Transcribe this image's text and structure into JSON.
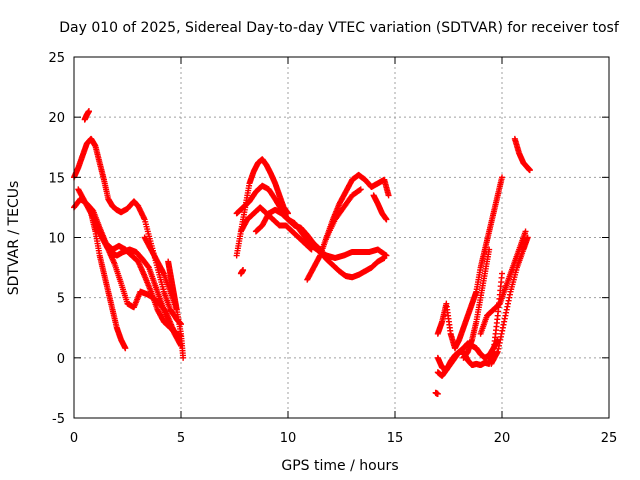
{
  "chart_data": {
    "type": "scatter",
    "title": "Day 010 of 2025, Sidereal Day-to-day VTEC variation (SDTVAR) for receiver tosf",
    "xlabel": "GPS time / hours",
    "ylabel": "SDTVAR / TECUs",
    "xlim": [
      0,
      25
    ],
    "ylim": [
      -5,
      25
    ],
    "xticks": [
      0,
      5,
      10,
      15,
      20,
      25
    ],
    "yticks": [
      -5,
      0,
      5,
      10,
      15,
      20,
      25
    ],
    "grid": true,
    "marker": "+",
    "color": "#ff0000",
    "series": [
      {
        "x": [
          0.0,
          0.2,
          0.4,
          0.6,
          0.8,
          1.0,
          1.2,
          1.4,
          1.6,
          1.8,
          2.0,
          2.2,
          2.5,
          2.8,
          3.0,
          3.3,
          3.6,
          3.9,
          4.2,
          4.5,
          4.8,
          5.0
        ],
        "y": [
          15.0,
          15.8,
          16.8,
          17.8,
          18.2,
          17.6,
          16.2,
          14.8,
          13.2,
          12.6,
          12.3,
          12.1,
          12.4,
          13.0,
          12.6,
          11.5,
          9.5,
          7.5,
          5.5,
          4.0,
          3.2,
          2.8
        ]
      },
      {
        "x": [
          0.0,
          0.3,
          0.6,
          0.9,
          1.2,
          1.5,
          1.8,
          2.1,
          2.4,
          2.7,
          3.0,
          3.3,
          3.6,
          3.9,
          4.2,
          4.5,
          4.8,
          5.0
        ],
        "y": [
          12.5,
          13.2,
          12.8,
          12.2,
          10.8,
          9.5,
          9.0,
          9.3,
          9.0,
          8.5,
          8.0,
          6.8,
          5.5,
          4.0,
          3.0,
          2.5,
          2.0,
          1.8
        ]
      },
      {
        "x": [
          0.8,
          1.0,
          1.2,
          1.4,
          1.6,
          1.8,
          2.0,
          2.2,
          2.4
        ],
        "y": [
          12.0,
          10.5,
          8.5,
          7.0,
          5.5,
          4.0,
          2.5,
          1.5,
          0.8
        ]
      },
      {
        "x": [
          1.0,
          1.3,
          1.6,
          1.9,
          2.2,
          2.5,
          2.8,
          3.1,
          3.4,
          3.7,
          4.0,
          4.3,
          4.6,
          4.9
        ],
        "y": [
          11.0,
          10.0,
          9.0,
          7.8,
          6.2,
          4.5,
          4.2,
          5.5,
          5.3,
          5.0,
          4.5,
          3.8,
          2.5,
          1.5
        ]
      },
      {
        "x": [
          0.2,
          0.5,
          0.8,
          1.1,
          1.4,
          1.7,
          2.0,
          2.3,
          2.6,
          2.9,
          3.2,
          3.5,
          3.8,
          4.1,
          4.4,
          4.7,
          5.0
        ],
        "y": [
          14.0,
          13.0,
          12.0,
          11.0,
          9.8,
          8.8,
          8.5,
          8.8,
          9.0,
          8.8,
          8.2,
          7.5,
          6.0,
          4.5,
          3.0,
          2.0,
          1.0
        ]
      },
      {
        "x": [
          3.3,
          3.6,
          3.9,
          4.2,
          4.5,
          4.8,
          5.0,
          5.1
        ],
        "y": [
          10.0,
          9.0,
          8.0,
          7.0,
          5.5,
          4.0,
          2.0,
          0.0
        ]
      },
      {
        "x": [
          4.4,
          4.5,
          4.6,
          4.7,
          4.8
        ],
        "y": [
          8.0,
          7.0,
          6.0,
          5.0,
          4.0
        ]
      },
      {
        "x": [
          0.5,
          0.6,
          0.7
        ],
        "y": [
          19.8,
          20.2,
          20.5
        ]
      },
      {
        "x": [
          7.6,
          7.8,
          8.0,
          8.2,
          8.4,
          8.6,
          8.8,
          9.0,
          9.2,
          9.4,
          9.6,
          9.8,
          10.0
        ],
        "y": [
          8.5,
          10.5,
          12.5,
          14.5,
          15.5,
          16.2,
          16.5,
          16.0,
          15.3,
          14.5,
          13.5,
          12.5,
          12.0
        ]
      },
      {
        "x": [
          7.6,
          7.9,
          8.2,
          8.5,
          8.8,
          9.1,
          9.4,
          9.7,
          10.0,
          10.3,
          10.6,
          10.9,
          11.2,
          11.5
        ],
        "y": [
          12.0,
          12.5,
          13.0,
          13.8,
          14.3,
          14.0,
          13.2,
          12.3,
          11.5,
          11.0,
          10.8,
          10.2,
          9.5,
          9.0
        ]
      },
      {
        "x": [
          7.8,
          8.1,
          8.4,
          8.7,
          9.0,
          9.3,
          9.6,
          9.9,
          10.2,
          10.5,
          10.8,
          11.1
        ],
        "y": [
          10.5,
          11.5,
          12.0,
          12.5,
          12.0,
          11.5,
          11.0,
          11.0,
          10.5,
          10.0,
          9.5,
          9.0
        ]
      },
      {
        "x": [
          8.5,
          8.8,
          9.1,
          9.4,
          9.7,
          10.0,
          10.3,
          10.6,
          10.9,
          11.2,
          11.5,
          11.8,
          12.1,
          12.4,
          12.7,
          13.0,
          13.3,
          13.6,
          13.9,
          14.2,
          14.5
        ],
        "y": [
          10.5,
          11.0,
          12.0,
          12.3,
          12.0,
          11.5,
          11.2,
          10.5,
          9.8,
          9.2,
          8.8,
          8.2,
          7.7,
          7.2,
          6.8,
          6.7,
          6.9,
          7.2,
          7.5,
          8.0,
          8.3
        ]
      },
      {
        "x": [
          10.9,
          11.2,
          11.5,
          11.8,
          12.1,
          12.4,
          12.7,
          13.0,
          13.3,
          13.6,
          13.9,
          14.2,
          14.5,
          14.7
        ],
        "y": [
          6.5,
          7.5,
          8.5,
          10.0,
          11.5,
          12.8,
          13.8,
          14.8,
          15.2,
          14.8,
          14.2,
          14.5,
          14.8,
          13.5
        ]
      },
      {
        "x": [
          11.0,
          11.4,
          11.8,
          12.2,
          12.6,
          13.0,
          13.4,
          13.8,
          14.2,
          14.6
        ],
        "y": [
          9.5,
          9.0,
          8.5,
          8.3,
          8.5,
          8.8,
          8.8,
          8.8,
          9.0,
          8.5
        ]
      },
      {
        "x": [
          11.8,
          12.2,
          12.6,
          13.0,
          13.4
        ],
        "y": [
          10.0,
          11.5,
          12.5,
          13.5,
          14.0
        ]
      },
      {
        "x": [
          14.0,
          14.2,
          14.4,
          14.6
        ],
        "y": [
          13.5,
          12.8,
          12.0,
          11.5
        ]
      },
      {
        "x": [
          7.8,
          7.9
        ],
        "y": [
          7.0,
          7.3
        ]
      },
      {
        "x": [
          17.0,
          17.2,
          17.4,
          17.6,
          17.8,
          18.0,
          18.2,
          18.4,
          18.6,
          18.8,
          19.0,
          19.2,
          19.4,
          19.6,
          19.8,
          20.0
        ],
        "y": [
          -1.2,
          -1.5,
          -1.0,
          -0.3,
          0.2,
          0.5,
          0.5,
          -0.2,
          -0.6,
          -0.5,
          -0.6,
          -0.4,
          -0.5,
          0.5,
          3.5,
          7.0
        ]
      },
      {
        "x": [
          17.0,
          17.2,
          17.4,
          17.6,
          17.8,
          18.0,
          18.2,
          18.4,
          18.6,
          18.8,
          19.0,
          19.2,
          19.4,
          19.6,
          19.8
        ],
        "y": [
          0.0,
          -0.8,
          -1.0,
          -0.5,
          0.0,
          0.5,
          0.8,
          1.2,
          1.0,
          0.8,
          0.3,
          0.0,
          0.2,
          0.8,
          1.5
        ]
      },
      {
        "x": [
          17.0,
          17.2,
          17.4,
          17.6,
          17.8,
          18.0,
          18.2,
          18.4,
          18.6,
          18.8,
          19.0,
          19.2,
          19.4,
          19.6,
          19.8,
          20.0
        ],
        "y": [
          2.0,
          3.0,
          4.5,
          2.0,
          0.8,
          1.5,
          2.5,
          3.5,
          4.5,
          5.5,
          7.5,
          9.0,
          10.5,
          12.0,
          13.5,
          15.0
        ]
      },
      {
        "x": [
          18.2,
          18.4,
          18.6,
          18.8,
          19.0,
          19.2,
          19.4
        ],
        "y": [
          0.0,
          0.5,
          1.5,
          3.0,
          5.0,
          7.0,
          9.0
        ]
      },
      {
        "x": [
          19.0,
          19.3,
          19.6,
          19.9,
          20.2,
          20.5,
          20.8,
          21.1
        ],
        "y": [
          2.0,
          3.5,
          4.0,
          4.5,
          6.0,
          7.5,
          9.0,
          10.5
        ]
      },
      {
        "x": [
          19.5,
          19.8,
          20.1,
          20.4,
          20.7,
          21.0,
          21.2
        ],
        "y": [
          -0.5,
          0.5,
          3.0,
          5.5,
          7.5,
          9.0,
          10.0
        ]
      },
      {
        "x": [
          20.6,
          20.8,
          21.0,
          21.2,
          21.3
        ],
        "y": [
          18.2,
          17.0,
          16.2,
          15.8,
          15.6
        ]
      },
      {
        "x": [
          16.9,
          17.0
        ],
        "y": [
          -2.9,
          -3.0
        ]
      }
    ]
  }
}
